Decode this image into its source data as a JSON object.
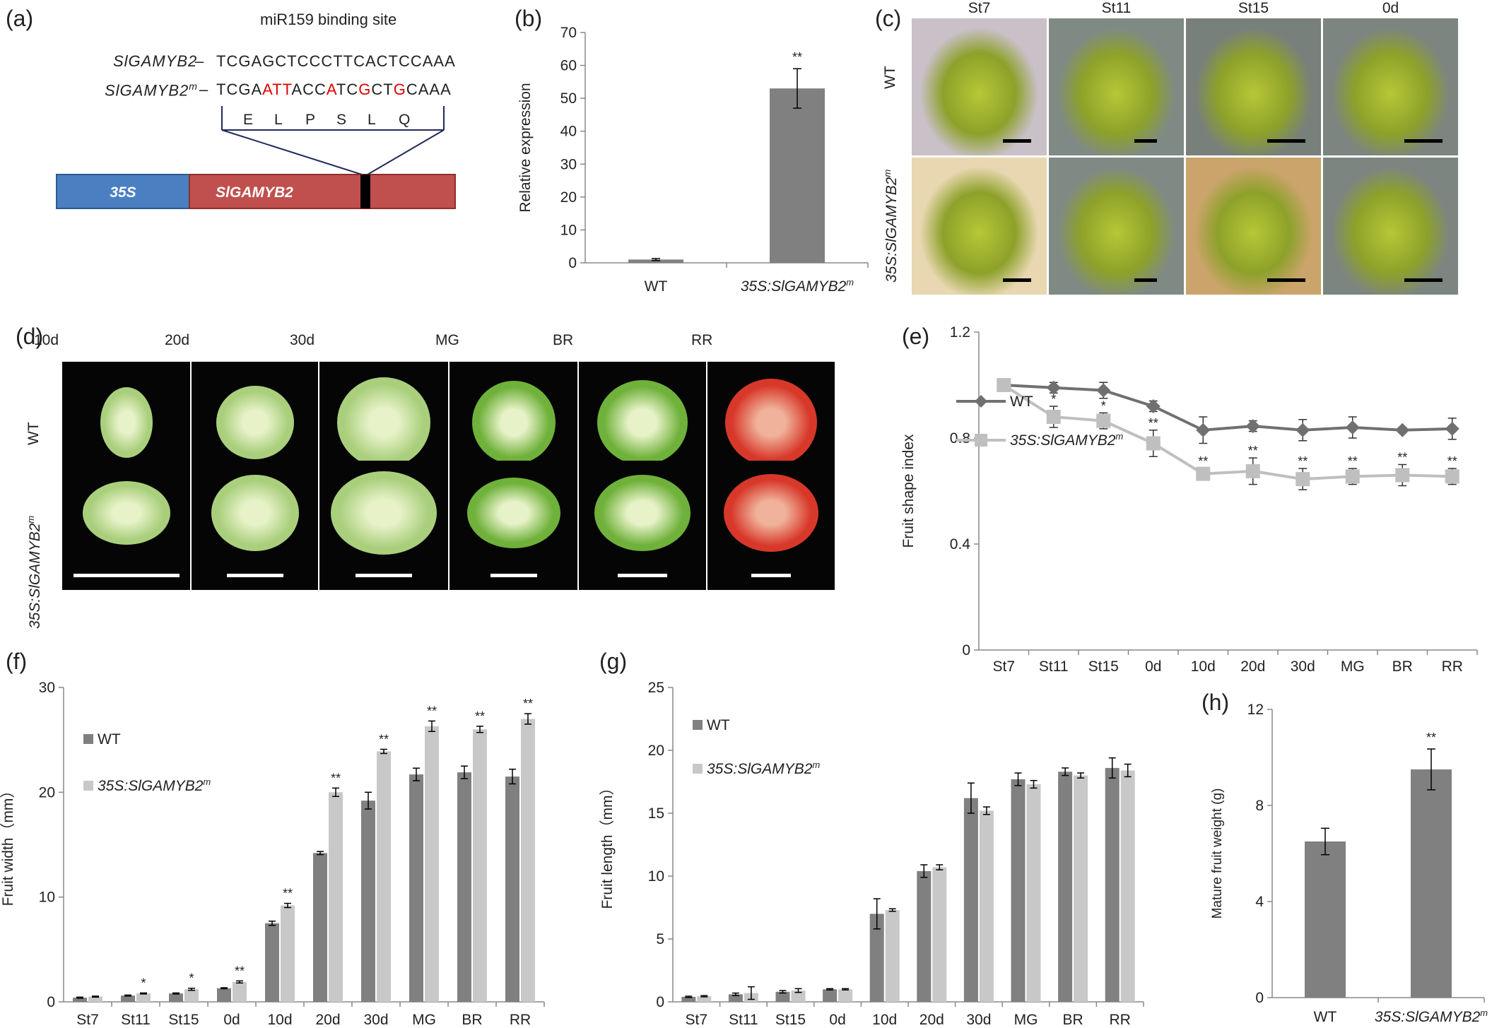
{
  "panel_labels": {
    "a": "(a)",
    "b": "(b)",
    "c": "(c)",
    "d": "(d)",
    "e": "(e)",
    "f": "(f)",
    "g": "(g)",
    "h": "(h)"
  },
  "panel_a": {
    "title": "miR159 binding site",
    "row1": {
      "name": "SlGAMYB2",
      "dash": "–",
      "seq": "TCGAGCTCCCTTCACTCCAAA"
    },
    "row2": {
      "name": "SlGAMYB2",
      "sup": "m",
      "dash": "–",
      "segments": [
        {
          "t": "TCGA",
          "red": false
        },
        {
          "t": "ATT",
          "red": true
        },
        {
          "t": "ACC",
          "red": false
        },
        {
          "t": "A",
          "red": true
        },
        {
          "t": "TC",
          "red": false
        },
        {
          "t": "G",
          "red": true
        },
        {
          "t": "CT",
          "red": false
        },
        {
          "t": "G",
          "red": true
        },
        {
          "t": "CAAA",
          "red": false
        }
      ]
    },
    "amino_acids": [
      "E",
      "L",
      "P",
      "S",
      "L",
      "Q"
    ],
    "promoter_label": "35S",
    "gene_label": "SlGAMYB2",
    "colors": {
      "promoter": "#4a7fc1",
      "gene": "#c0504d",
      "site": "#000000",
      "line": "#1f2a5a",
      "mut": "#e00000"
    }
  },
  "panel_c": {
    "stages": [
      "St7",
      "St11",
      "St15",
      "0d"
    ],
    "rows": [
      {
        "label": "WT"
      },
      {
        "label": "35S:SlGAMYB2",
        "sup": "m"
      }
    ]
  },
  "panel_d": {
    "stages": [
      "10d",
      "20d",
      "30d",
      "MG",
      "BR",
      "RR"
    ],
    "rows": [
      {
        "label": "WT"
      },
      {
        "label": "35S:SlGAMYB2",
        "sup": "m"
      }
    ]
  },
  "chart_data": [
    {
      "id": "b",
      "type": "bar",
      "categories": [
        "WT",
        "35S:SlGAMYB2m"
      ],
      "values": [
        1,
        53
      ],
      "errors": [
        0.3,
        6
      ],
      "signif": [
        "",
        "**"
      ],
      "ylabel": "Relative expression",
      "ylim": [
        0,
        70
      ],
      "yticks": [
        0,
        10,
        20,
        30,
        40,
        50,
        60,
        70
      ],
      "colors": {
        "bar": "#808080"
      }
    },
    {
      "id": "e",
      "type": "line",
      "categories": [
        "St7",
        "St11",
        "St15",
        "0d",
        "10d",
        "20d",
        "30d",
        "MG",
        "BR",
        "RR"
      ],
      "ylabel": "Fruit shape index",
      "ylim": [
        0,
        1.2
      ],
      "yticks": [
        "0",
        "0.4",
        "0.8",
        "1.2"
      ],
      "series": [
        {
          "name": "WT",
          "values": [
            1.0,
            0.99,
            0.98,
            0.92,
            0.83,
            0.845,
            0.83,
            0.84,
            0.83,
            0.835
          ],
          "errors": [
            0.02,
            0.02,
            0.03,
            0.02,
            0.05,
            0.02,
            0.04,
            0.04,
            0.01,
            0.04
          ],
          "color": "#707070",
          "marker": "diamond"
        },
        {
          "name": "35S:SlGAMYB2m",
          "values": [
            1.0,
            0.88,
            0.865,
            0.78,
            0.665,
            0.675,
            0.645,
            0.655,
            0.66,
            0.655
          ],
          "errors": [
            0.02,
            0.04,
            0.03,
            0.05,
            0.02,
            0.05,
            0.04,
            0.03,
            0.04,
            0.03
          ],
          "color": "#bfbfbf",
          "marker": "square",
          "signif": [
            "",
            "*",
            "*",
            "**",
            "**",
            "**",
            "**",
            "**",
            "**",
            "**"
          ]
        }
      ],
      "legend": [
        "WT",
        "35S:SlGAMYB2m"
      ]
    },
    {
      "id": "f",
      "type": "bar",
      "categories": [
        "St7",
        "St11",
        "St15",
        "0d",
        "10d",
        "20d",
        "30d",
        "MG",
        "BR",
        "RR"
      ],
      "ylabel": "Fruit width（mm）",
      "ylim": [
        0,
        30
      ],
      "yticks": [
        0,
        10,
        20,
        30
      ],
      "series": [
        {
          "name": "WT",
          "values": [
            0.4,
            0.6,
            0.8,
            1.3,
            7.5,
            14.2,
            19.2,
            21.7,
            21.9,
            21.5
          ],
          "errors": [
            0.05,
            0.05,
            0.05,
            0.05,
            0.2,
            0.15,
            0.8,
            0.6,
            0.6,
            0.7
          ],
          "color": "#808080"
        },
        {
          "name": "35S:SlGAMYB2m",
          "values": [
            0.5,
            0.8,
            1.2,
            1.9,
            9.2,
            20.0,
            23.9,
            26.3,
            26.0,
            27.0
          ],
          "errors": [
            0.05,
            0.05,
            0.1,
            0.1,
            0.2,
            0.4,
            0.2,
            0.5,
            0.3,
            0.5
          ],
          "color": "#c8c8c8"
        }
      ],
      "signif": [
        "",
        "*",
        "*",
        "**",
        "**",
        "**",
        "**",
        "**",
        "**",
        "**"
      ],
      "legend": [
        "WT",
        "35S:SlGAMYB2m"
      ]
    },
    {
      "id": "g",
      "type": "bar",
      "categories": [
        "St7",
        "St11",
        "St15",
        "0d",
        "10d",
        "20d",
        "30d",
        "MG",
        "BR",
        "RR"
      ],
      "ylabel": "Fruit length（mm）",
      "ylim": [
        0,
        25
      ],
      "yticks": [
        0,
        5,
        10,
        15,
        20,
        25
      ],
      "series": [
        {
          "name": "WT",
          "values": [
            0.4,
            0.6,
            0.8,
            1.0,
            7.0,
            10.4,
            16.2,
            17.7,
            18.3,
            18.6
          ],
          "errors": [
            0.05,
            0.1,
            0.1,
            0.05,
            1.2,
            0.5,
            1.2,
            0.5,
            0.3,
            0.8
          ],
          "color": "#808080"
        },
        {
          "name": "35S:SlGAMYB2m",
          "values": [
            0.45,
            0.7,
            0.9,
            1.0,
            7.3,
            10.7,
            15.2,
            17.3,
            18.0,
            18.4
          ],
          "errors": [
            0.05,
            0.5,
            0.15,
            0.05,
            0.1,
            0.2,
            0.3,
            0.3,
            0.2,
            0.5
          ],
          "color": "#c8c8c8"
        }
      ],
      "legend": [
        "WT",
        "35S:SlGAMYB2m"
      ]
    },
    {
      "id": "h",
      "type": "bar",
      "categories": [
        "WT",
        "35S:SlGAMYB2m"
      ],
      "values": [
        6.5,
        9.5
      ],
      "errors": [
        0.55,
        0.85
      ],
      "signif": [
        "",
        "**"
      ],
      "ylabel": "Mature fruit weight (g)",
      "ylim": [
        0,
        12
      ],
      "yticks": [
        0,
        4,
        8,
        12
      ],
      "colors": {
        "bar": "#808080"
      }
    }
  ]
}
